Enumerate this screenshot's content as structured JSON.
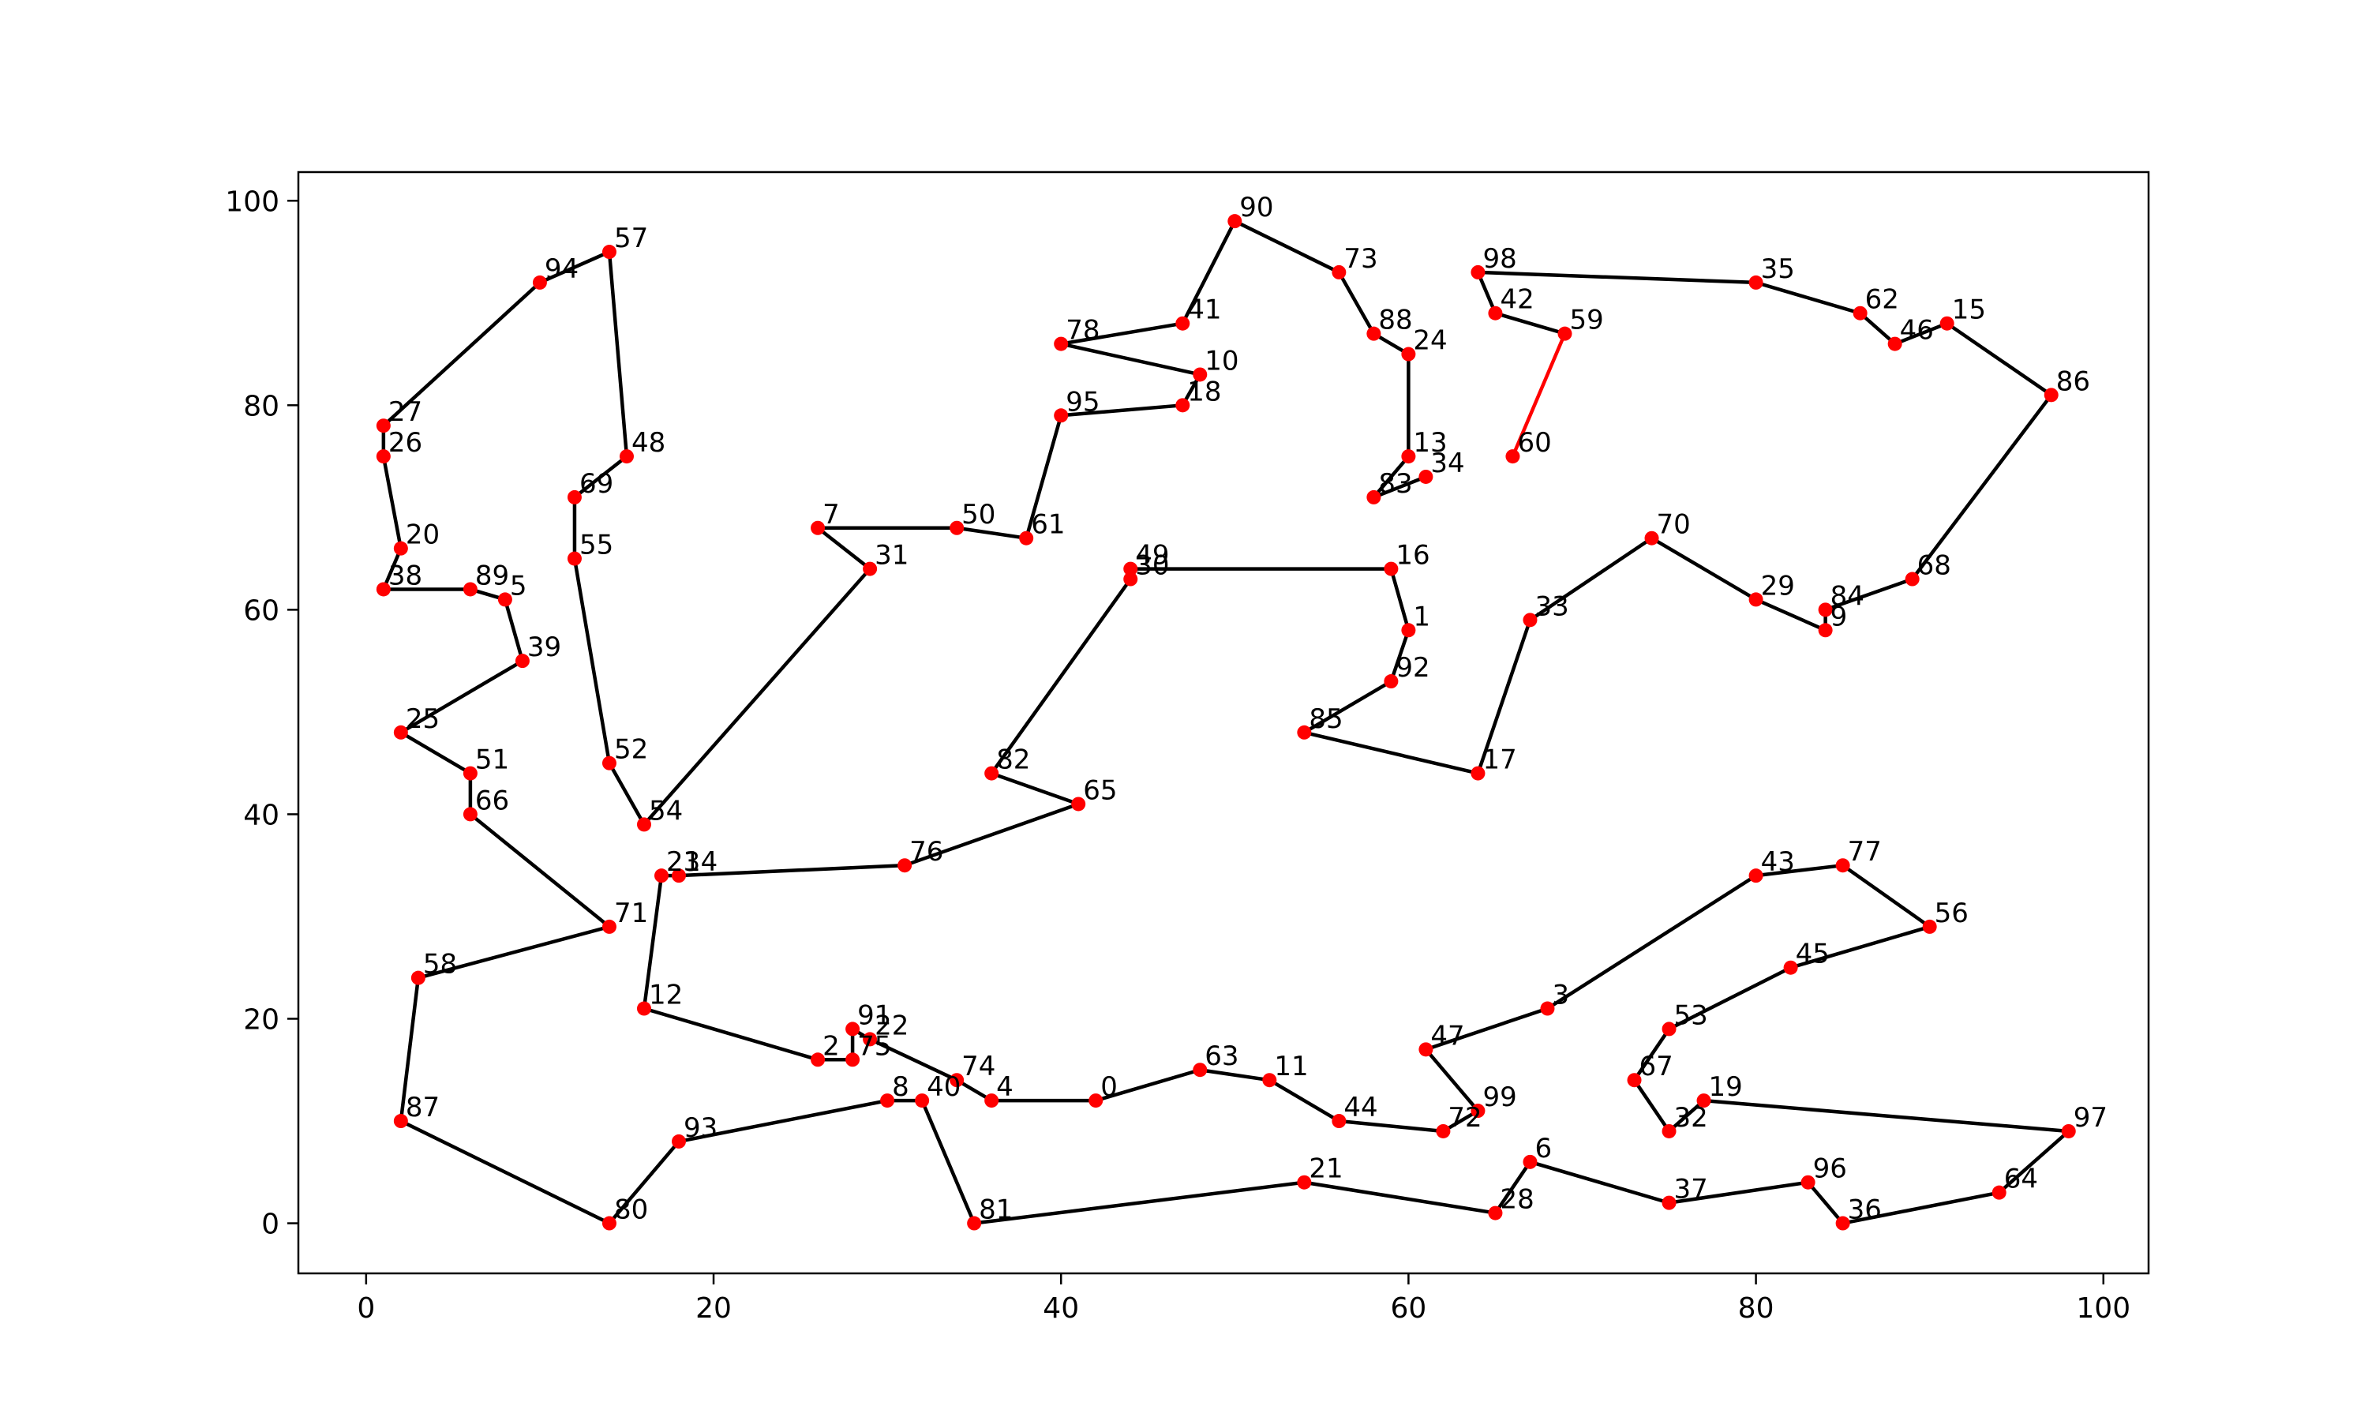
{
  "chart_data": {
    "type": "scatter",
    "title": "",
    "xlabel": "",
    "ylabel": "",
    "xlim": [
      -3.9,
      102.6
    ],
    "ylim": [
      -4.9,
      102.8
    ],
    "xticks": [
      0,
      20,
      40,
      60,
      80,
      100
    ],
    "yticks": [
      0,
      20,
      40,
      60,
      80,
      100
    ],
    "grid": false,
    "colors": {
      "point": "#ff0000",
      "path": "#000000",
      "highlight_red": "#ff0000",
      "highlight_green": "#008000"
    },
    "points": [
      {
        "id": "0",
        "x": 42,
        "y": 12
      },
      {
        "id": "1",
        "x": 60,
        "y": 58
      },
      {
        "id": "2",
        "x": 26,
        "y": 16
      },
      {
        "id": "3",
        "x": 68,
        "y": 21
      },
      {
        "id": "4",
        "x": 36,
        "y": 12
      },
      {
        "id": "5",
        "x": 8,
        "y": 61
      },
      {
        "id": "6",
        "x": 67,
        "y": 6
      },
      {
        "id": "7",
        "x": 26,
        "y": 68
      },
      {
        "id": "8",
        "x": 30,
        "y": 12
      },
      {
        "id": "9",
        "x": 84,
        "y": 58
      },
      {
        "id": "10",
        "x": 48,
        "y": 83
      },
      {
        "id": "11",
        "x": 52,
        "y": 14
      },
      {
        "id": "12",
        "x": 16,
        "y": 21
      },
      {
        "id": "13",
        "x": 60,
        "y": 75
      },
      {
        "id": "14",
        "x": 18,
        "y": 34
      },
      {
        "id": "15",
        "x": 91,
        "y": 88
      },
      {
        "id": "16",
        "x": 59,
        "y": 64
      },
      {
        "id": "17",
        "x": 64,
        "y": 44
      },
      {
        "id": "18",
        "x": 47,
        "y": 80
      },
      {
        "id": "19",
        "x": 77,
        "y": 12
      },
      {
        "id": "20",
        "x": 2,
        "y": 66
      },
      {
        "id": "21",
        "x": 54,
        "y": 4
      },
      {
        "id": "22",
        "x": 29,
        "y": 18
      },
      {
        "id": "23",
        "x": 17,
        "y": 34
      },
      {
        "id": "24",
        "x": 60,
        "y": 85
      },
      {
        "id": "25",
        "x": 2,
        "y": 48
      },
      {
        "id": "26",
        "x": 1,
        "y": 75
      },
      {
        "id": "27",
        "x": 1,
        "y": 78
      },
      {
        "id": "28",
        "x": 65,
        "y": 1
      },
      {
        "id": "29",
        "x": 80,
        "y": 61
      },
      {
        "id": "30",
        "x": 44,
        "y": 63
      },
      {
        "id": "31",
        "x": 29,
        "y": 64
      },
      {
        "id": "32",
        "x": 75,
        "y": 9
      },
      {
        "id": "33",
        "x": 67,
        "y": 59
      },
      {
        "id": "34",
        "x": 61,
        "y": 73
      },
      {
        "id": "35",
        "x": 80,
        "y": 92
      },
      {
        "id": "36",
        "x": 85,
        "y": 0
      },
      {
        "id": "37",
        "x": 75,
        "y": 2
      },
      {
        "id": "38",
        "x": 1,
        "y": 62
      },
      {
        "id": "39",
        "x": 9,
        "y": 55
      },
      {
        "id": "40",
        "x": 32,
        "y": 12
      },
      {
        "id": "41",
        "x": 47,
        "y": 88
      },
      {
        "id": "42",
        "x": 65,
        "y": 89
      },
      {
        "id": "43",
        "x": 80,
        "y": 34
      },
      {
        "id": "44",
        "x": 56,
        "y": 10
      },
      {
        "id": "45",
        "x": 82,
        "y": 25
      },
      {
        "id": "46",
        "x": 88,
        "y": 86
      },
      {
        "id": "47",
        "x": 61,
        "y": 17
      },
      {
        "id": "48",
        "x": 15,
        "y": 75
      },
      {
        "id": "49",
        "x": 44,
        "y": 64
      },
      {
        "id": "50",
        "x": 34,
        "y": 68
      },
      {
        "id": "51",
        "x": 6,
        "y": 44
      },
      {
        "id": "52",
        "x": 14,
        "y": 45
      },
      {
        "id": "53",
        "x": 75,
        "y": 19
      },
      {
        "id": "54",
        "x": 16,
        "y": 39
      },
      {
        "id": "55",
        "x": 12,
        "y": 65
      },
      {
        "id": "56",
        "x": 90,
        "y": 29
      },
      {
        "id": "57",
        "x": 14,
        "y": 95
      },
      {
        "id": "58",
        "x": 3,
        "y": 24
      },
      {
        "id": "59",
        "x": 69,
        "y": 87
      },
      {
        "id": "60",
        "x": 66,
        "y": 75
      },
      {
        "id": "61",
        "x": 38,
        "y": 67
      },
      {
        "id": "62",
        "x": 86,
        "y": 89
      },
      {
        "id": "63",
        "x": 48,
        "y": 15
      },
      {
        "id": "64",
        "x": 94,
        "y": 3
      },
      {
        "id": "65",
        "x": 41,
        "y": 41
      },
      {
        "id": "66",
        "x": 6,
        "y": 40
      },
      {
        "id": "67",
        "x": 73,
        "y": 14
      },
      {
        "id": "68",
        "x": 89,
        "y": 63
      },
      {
        "id": "69",
        "x": 12,
        "y": 71
      },
      {
        "id": "70",
        "x": 74,
        "y": 67
      },
      {
        "id": "71",
        "x": 14,
        "y": 29
      },
      {
        "id": "72",
        "x": 62,
        "y": 9
      },
      {
        "id": "73",
        "x": 56,
        "y": 93
      },
      {
        "id": "74",
        "x": 34,
        "y": 14
      },
      {
        "id": "75",
        "x": 28,
        "y": 16
      },
      {
        "id": "76",
        "x": 31,
        "y": 35
      },
      {
        "id": "77",
        "x": 85,
        "y": 35
      },
      {
        "id": "78",
        "x": 40,
        "y": 86
      },
      {
        "id": "80",
        "x": 14,
        "y": 0
      },
      {
        "id": "81",
        "x": 35,
        "y": 0
      },
      {
        "id": "82",
        "x": 36,
        "y": 44
      },
      {
        "id": "83",
        "x": 58,
        "y": 71
      },
      {
        "id": "84",
        "x": 84,
        "y": 60
      },
      {
        "id": "85",
        "x": 54,
        "y": 48
      },
      {
        "id": "86",
        "x": 97,
        "y": 81
      },
      {
        "id": "87",
        "x": 2,
        "y": 10
      },
      {
        "id": "88",
        "x": 58,
        "y": 87
      },
      {
        "id": "89",
        "x": 6,
        "y": 62
      },
      {
        "id": "90",
        "x": 50,
        "y": 98
      },
      {
        "id": "91",
        "x": 28,
        "y": 19
      },
      {
        "id": "92",
        "x": 59,
        "y": 53
      },
      {
        "id": "93",
        "x": 18,
        "y": 8
      },
      {
        "id": "94",
        "x": 10,
        "y": 92
      },
      {
        "id": "95",
        "x": 40,
        "y": 79
      },
      {
        "id": "96",
        "x": 83,
        "y": 4
      },
      {
        "id": "97",
        "x": 98,
        "y": 9
      },
      {
        "id": "98",
        "x": 64,
        "y": 93
      },
      {
        "id": "99",
        "x": 64,
        "y": 11
      }
    ],
    "tour": [
      "60",
      "59",
      "42",
      "98",
      "35",
      "62",
      "46",
      "15",
      "86",
      "68",
      "84",
      "9",
      "29",
      "70",
      "33",
      "17",
      "85",
      "92",
      "1",
      "16",
      "49",
      "30",
      "82",
      "65",
      "76",
      "14",
      "23",
      "12",
      "2",
      "75",
      "91",
      "22",
      "74",
      "4",
      "0",
      "63",
      "11",
      "44",
      "72",
      "99",
      "47",
      "3",
      "43",
      "77",
      "56",
      "45",
      "53",
      "67",
      "32",
      "19",
      "97",
      "64",
      "36",
      "96",
      "37",
      "6",
      "28",
      "21",
      "81",
      "40",
      "8",
      "93",
      "80",
      "87",
      "58",
      "71",
      "66",
      "51",
      "25",
      "39",
      "5",
      "89",
      "38",
      "20",
      "26",
      "27",
      "94",
      "57",
      "48",
      "69",
      "55",
      "52",
      "54",
      "31",
      "7",
      "50",
      "61",
      "95",
      "18",
      "10",
      "78",
      "41",
      "90",
      "73",
      "88",
      "24",
      "13",
      "83",
      "34"
    ],
    "highlight_edges": [
      {
        "from": "60",
        "to": "59",
        "color": "#ff0000"
      },
      {
        "from": "34",
        "to": "60",
        "color": "#008000"
      }
    ]
  }
}
